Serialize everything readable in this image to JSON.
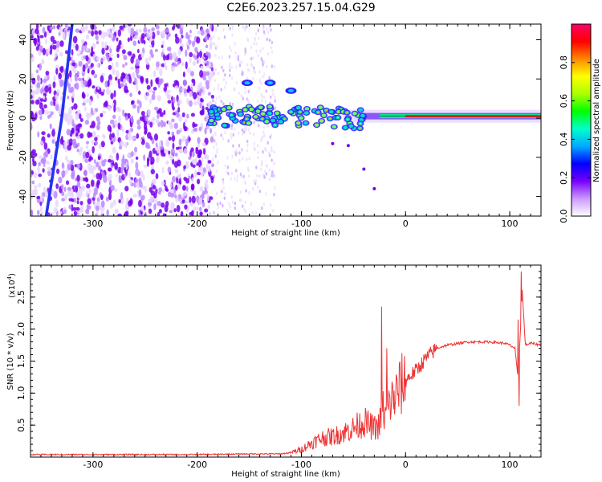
{
  "title": "C2E6.2023.257.15.04.G29",
  "colors": {
    "snr_line": "#ee3333",
    "frame": "#000000",
    "colorbar": [
      "#ffffff",
      "#cc99ff",
      "#7700ff",
      "#0000ff",
      "#00aaff",
      "#00ffcc",
      "#00ff00",
      "#aaff00",
      "#ffff00",
      "#ff8800",
      "#ff0000",
      "#ff0066"
    ]
  },
  "chart_data": [
    {
      "type": "heatmap",
      "title": "",
      "xlabel": "Height of straight line (km)",
      "ylabel": "Frequency (Hz)",
      "xlim": [
        -360,
        130
      ],
      "ylim": [
        -50,
        48
      ],
      "x_ticks": [
        -300,
        -200,
        -100,
        0,
        100
      ],
      "y_ticks": [
        -40,
        -20,
        0,
        20,
        40
      ],
      "colorbar": {
        "label": "Normalized spectral amplitude",
        "range": [
          0.0,
          1.0
        ],
        "ticks": [
          "0.0",
          "0.2",
          "0.4",
          "0.6",
          "0.8"
        ]
      },
      "features": {
        "noise_region_x": [
          -360,
          -185
        ],
        "sparse_noise_x": [
          -185,
          -125
        ],
        "main_trace_y_hz": 1,
        "main_trace_x": [
          -190,
          130
        ],
        "peak_cluster_x": [
          0,
          130
        ],
        "side_blobs": [
          {
            "x": -152,
            "y": 18
          },
          {
            "x": -130,
            "y": 18
          },
          {
            "x": -110,
            "y": 14
          }
        ],
        "diagonal_trace": [
          {
            "x": -345,
            "y": -50
          },
          {
            "x": -330,
            "y": 0
          },
          {
            "x": -320,
            "y": 48
          }
        ]
      }
    },
    {
      "type": "line",
      "title": "",
      "xlabel": "Height of straight line (km)",
      "ylabel": "SNR (10 * v/v)",
      "y_multiplier": "(x10",
      "y_multiplier_exp": "4",
      "y_multiplier_close": ")",
      "xlim": [
        -360,
        130
      ],
      "ylim": [
        0,
        3.0
      ],
      "x_ticks": [
        -300,
        -200,
        -100,
        0,
        100
      ],
      "y_ticks": [
        "0.5",
        "1.0",
        "1.5",
        "2.0",
        "2.5"
      ],
      "series": [
        {
          "x": [
            -360,
            -300,
            -250,
            -200,
            -150,
            -120,
            -110,
            -100,
            -90,
            -80,
            -70,
            -60,
            -50,
            -40,
            -30,
            -25,
            -22,
            -20,
            -15,
            -10,
            -5,
            0,
            10,
            20,
            30,
            40,
            60,
            80,
            95,
            100,
            105,
            108,
            110,
            112,
            115,
            120,
            130
          ],
          "y": [
            0.04,
            0.04,
            0.04,
            0.04,
            0.05,
            0.05,
            0.07,
            0.12,
            0.22,
            0.3,
            0.32,
            0.38,
            0.45,
            0.55,
            0.45,
            0.5,
            0.8,
            0.6,
            0.85,
            0.95,
            1.1,
            1.2,
            1.35,
            1.55,
            1.7,
            1.75,
            1.8,
            1.8,
            1.78,
            1.75,
            1.7,
            1.2,
            1.9,
            2.6,
            1.75,
            1.78,
            1.75
          ],
          "spikes": [
            {
              "x": -23,
              "y": 2.35
            },
            {
              "x": -18,
              "y": 1.7
            },
            {
              "x": 108,
              "y": 2.15
            },
            {
              "x": 111,
              "y": 2.9
            },
            {
              "x": 109,
              "y": 0.8
            }
          ]
        }
      ]
    }
  ]
}
